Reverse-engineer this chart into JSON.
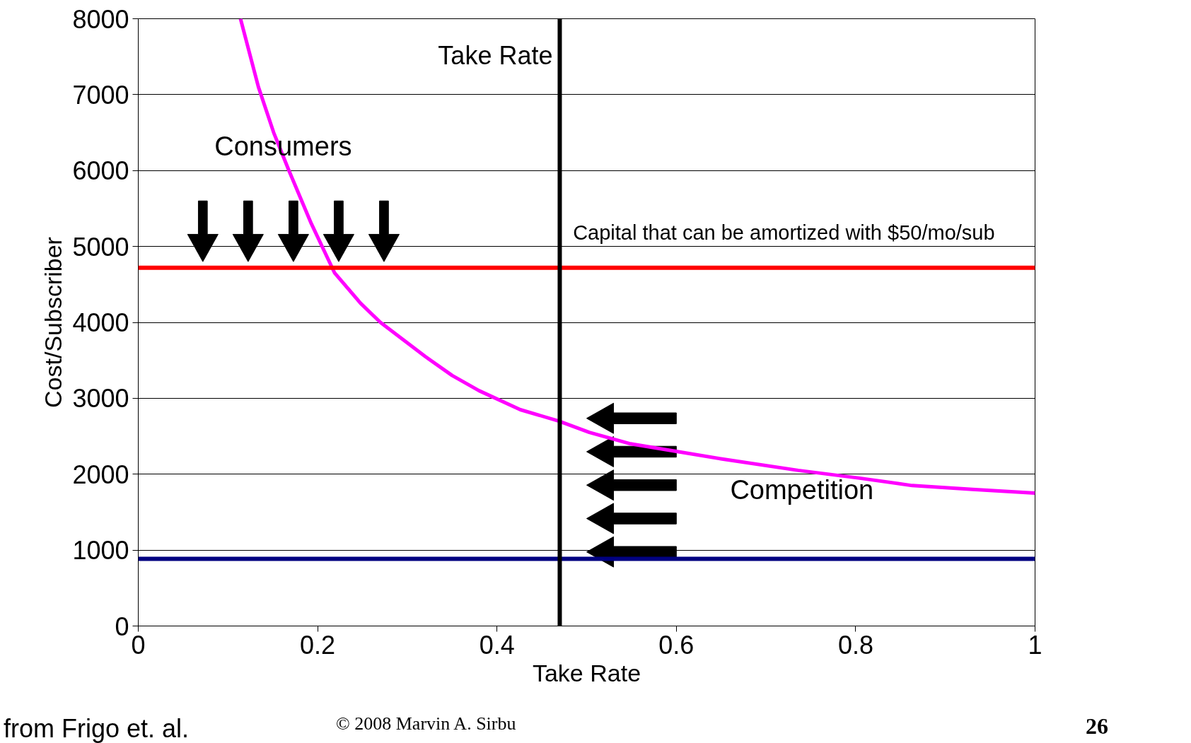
{
  "chart_data": {
    "type": "line",
    "xlabel": "Take Rate",
    "ylabel": "Cost/Subscriber",
    "x": [
      0.114,
      0.134,
      0.151,
      0.168,
      0.193,
      0.219,
      0.248,
      0.27,
      0.32,
      0.35,
      0.38,
      0.426,
      0.469,
      0.503,
      0.549,
      0.6,
      0.651,
      0.736,
      0.803,
      0.863,
      0.93,
      1.0
    ],
    "series": [
      {
        "color": "#ff00ff",
        "values": [
          8000,
          7100,
          6500,
          6000,
          5300,
          4650,
          4250,
          4000,
          3550,
          3300,
          3100,
          2850,
          2700,
          2550,
          2400,
          2300,
          2200,
          2050,
          1950,
          1850,
          1800,
          1750
        ]
      }
    ],
    "ref_lines": [
      {
        "axis": "y",
        "value": 4720,
        "label": "Capital that can be amortized with $50/mo/sub",
        "color": "#ff0000"
      },
      {
        "axis": "y",
        "value": 885,
        "color": "#000080"
      },
      {
        "axis": "x",
        "value": 0.47,
        "label": "Take Rate",
        "color": "#000000"
      }
    ],
    "annotations": [
      "Consumers",
      "Competition",
      "from Frigo et. al.",
      "© 2008  Marvin A. Sirbu",
      "26"
    ],
    "xlim": [
      0,
      1
    ],
    "ylim": [
      0,
      8000
    ],
    "xticks": [
      0,
      0.2,
      0.4,
      0.6,
      0.8,
      1
    ],
    "yticks": [
      0,
      1000,
      2000,
      3000,
      4000,
      5000,
      6000,
      7000,
      8000
    ],
    "grid": "y",
    "marker": "none",
    "line_style": "solid"
  }
}
